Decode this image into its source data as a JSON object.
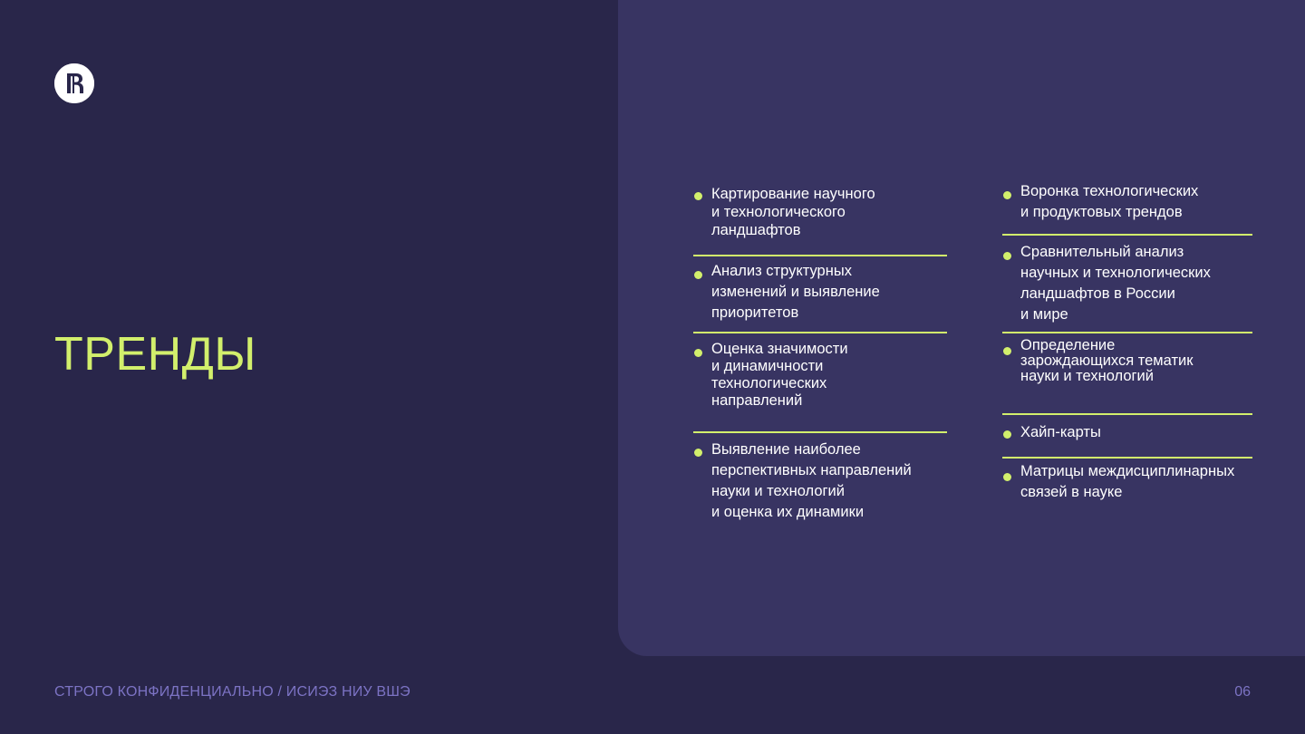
{
  "slide": {
    "title": "ТРЕНДЫ",
    "footer": "СТРОГО КОНФИДЕНЦИАЛЬНО / ИСИЭЗ НИУ ВШЭ",
    "page_number": "06",
    "colors": {
      "background": "#29264a",
      "panel": "#383462",
      "accent": "#d2ef6c",
      "footer_text": "#7c73c4"
    }
  },
  "logo": {
    "icon": "hse-logo-icon"
  },
  "left_column": [
    "Картирование научного\nи технологического\nландшафтов",
    "Анализ структурных\nизменений и выявление\nприоритетов",
    "Оценка значимости\nи динамичности\nтехнологических\nнаправлений",
    "Выявление наиболее\nперспективных направлений\nнауки и технологий\nи оценка их динамики"
  ],
  "right_column": [
    "Воронка технологических\nи продуктовых трендов",
    "Сравнительный анализ\nнаучных и технологических\nландшафтов в России\nи мире",
    "Определение\nзарождающихся тематик\nнауки и технологий",
    "Хайп-карты",
    "Матрицы междисциплинарных\nсвязей в науке"
  ]
}
